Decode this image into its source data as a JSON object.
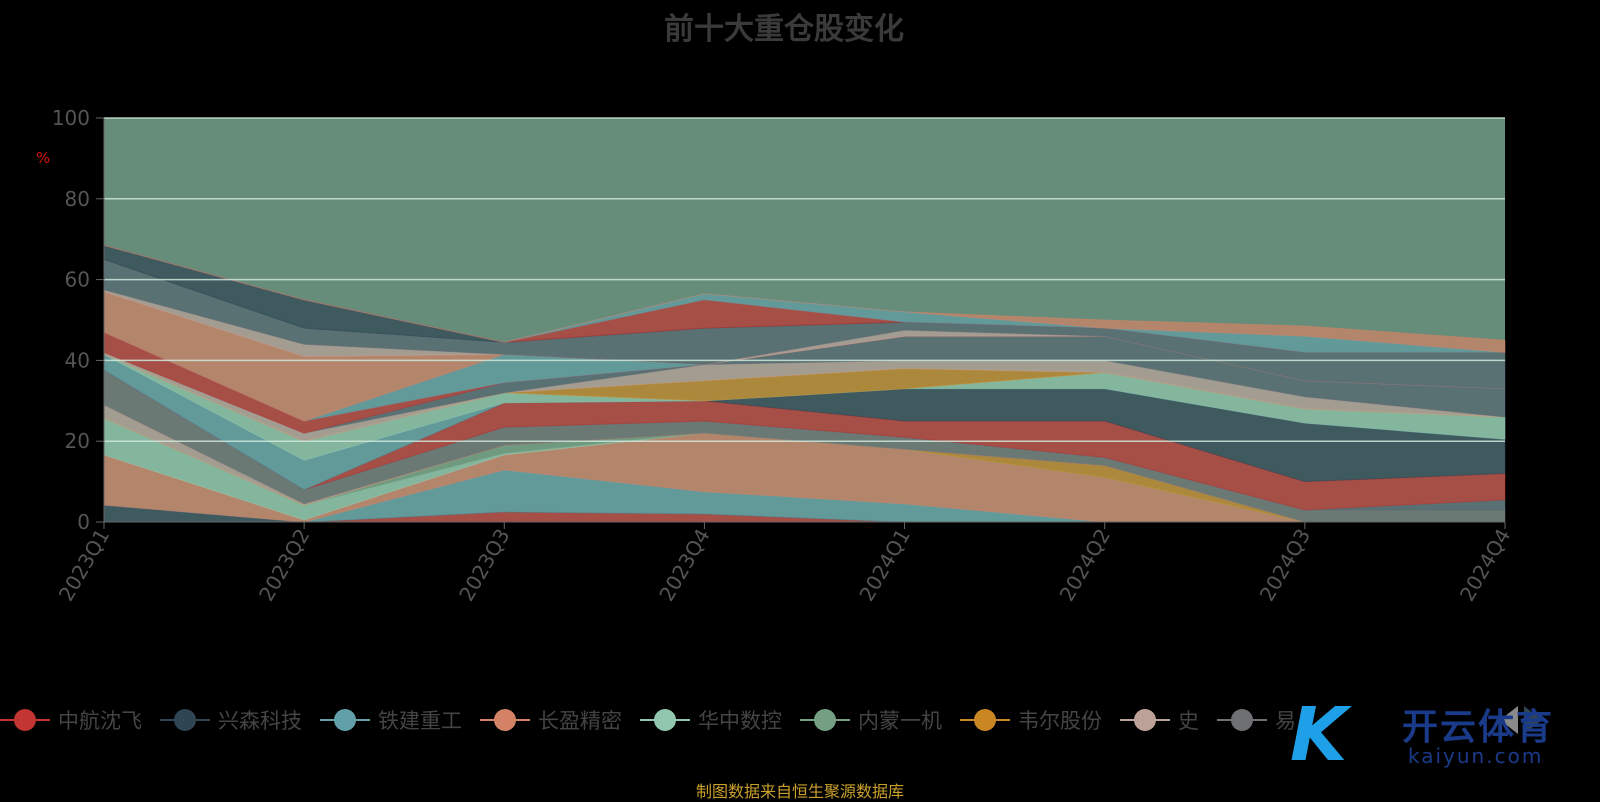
{
  "chart_data": {
    "type": "area",
    "stacked": true,
    "title": "前十大重仓股变化",
    "ylabel": "%",
    "ylim": [
      0,
      100
    ],
    "yticks": [
      "0",
      "20",
      "40",
      "60",
      "80",
      "100"
    ],
    "categories": [
      "2023Q1",
      "2023Q2",
      "2023Q3",
      "2023Q4",
      "2024Q1",
      "2024Q2",
      "2024Q3",
      "2024Q4"
    ],
    "remainder_color": "#658d7a",
    "grid": true,
    "legend_position": "bottom",
    "series": [
      {
        "name": "中航沈飞",
        "color": "#c23531",
        "values": [
          0,
          0,
          2.5,
          2,
          0,
          0,
          0,
          0
        ]
      },
      {
        "name": "兴森科技",
        "color": "#2f4554",
        "values": [
          4.2,
          0,
          0,
          0,
          0,
          0,
          0,
          0
        ]
      },
      {
        "name": "铁建重工",
        "color": "#61a0a8",
        "values": [
          0,
          0,
          10.4,
          5.5,
          4.5,
          0,
          0,
          0
        ]
      },
      {
        "name": "长盈精密",
        "color": "#d48265",
        "values": [
          12.4,
          0.5,
          3.7,
          14.5,
          13.5,
          11,
          0,
          0
        ]
      },
      {
        "name": "华中数控",
        "color": "#91c7ae",
        "values": [
          9.1,
          3.7,
          0.4,
          0,
          0,
          0,
          0,
          0
        ]
      },
      {
        "name": "内蒙一机",
        "color": "#749f83",
        "values": [
          0,
          0,
          2,
          0,
          0,
          0,
          0,
          0
        ]
      },
      {
        "name": "韦尔股份",
        "color": "#ca8622",
        "values": [
          0,
          0,
          0,
          0,
          0,
          3,
          0,
          0
        ]
      },
      {
        "name": "史",
        "color": "#bda29a",
        "values": [
          3.3,
          0.3,
          0,
          0,
          0,
          0,
          0,
          0
        ]
      },
      {
        "name": "易",
        "color": "#6e7074",
        "values": [
          8.6,
          3.5,
          4.5,
          3,
          3,
          2,
          3,
          3
        ]
      },
      {
        "name": "",
        "color": "#546570",
        "values": [
          0,
          0,
          0,
          0,
          0,
          0,
          0,
          2.5
        ]
      },
      {
        "name": "",
        "color": "#c23531",
        "values": [
          0,
          0,
          6,
          5,
          4,
          9,
          7,
          6.5
        ]
      },
      {
        "name": "",
        "color": "#2f4554",
        "values": [
          0,
          0,
          0,
          0,
          8,
          8,
          14.5,
          8.5
        ]
      },
      {
        "name": "",
        "color": "#61a0a8",
        "values": [
          3.9,
          7.3,
          0,
          0,
          0,
          0,
          0,
          0
        ]
      },
      {
        "name": "",
        "color": "#91c7ae",
        "values": [
          0,
          4.7,
          2.5,
          0,
          0,
          4,
          3.5,
          5.5
        ]
      },
      {
        "name": "",
        "color": "#ca8622",
        "values": [
          0,
          0,
          0,
          5,
          5,
          0,
          0,
          0
        ]
      },
      {
        "name": "",
        "color": "#bda29a",
        "values": [
          0.5,
          2,
          0,
          4,
          2,
          3,
          3,
          0
        ]
      },
      {
        "name": "",
        "color": "#546570",
        "values": [
          0,
          0,
          2.5,
          0,
          6,
          6,
          4,
          7
        ]
      },
      {
        "name": "",
        "color": "#c23531",
        "values": [
          5,
          3,
          0,
          0,
          0,
          0,
          0,
          0
        ]
      },
      {
        "name": "",
        "color": "#61a0a8",
        "values": [
          0,
          0,
          7,
          0,
          0,
          0,
          0,
          0
        ]
      },
      {
        "name": "",
        "color": "#d48265",
        "values": [
          10,
          16,
          0,
          0,
          0,
          0,
          0,
          0
        ]
      },
      {
        "name": "",
        "color": "#bda29a",
        "values": [
          0.5,
          3,
          0,
          0,
          1.5,
          0,
          0,
          0
        ]
      },
      {
        "name": "",
        "color": "#546570",
        "values": [
          7.5,
          4,
          3,
          9,
          2,
          2,
          7,
          9
        ]
      },
      {
        "name": "",
        "color": "#2f4554",
        "values": [
          3.5,
          7,
          0,
          0,
          0,
          0,
          0,
          0
        ]
      },
      {
        "name": "",
        "color": "#c23531",
        "values": [
          0,
          0,
          0,
          7,
          0,
          0,
          0,
          0
        ]
      },
      {
        "name": "",
        "color": "#61a0a8",
        "values": [
          0,
          0,
          0,
          1.5,
          2.5,
          0,
          4,
          0
        ]
      },
      {
        "name": "",
        "color": "#d48265",
        "values": [
          0,
          0,
          0,
          0,
          0,
          2,
          2.5,
          3
        ]
      }
    ]
  },
  "legend_visible_count": 9,
  "source": "制图数据来自恒生聚源数据库",
  "watermark": {
    "logo": "K",
    "cn": "开云体育",
    "en": "kaiyun.com"
  }
}
